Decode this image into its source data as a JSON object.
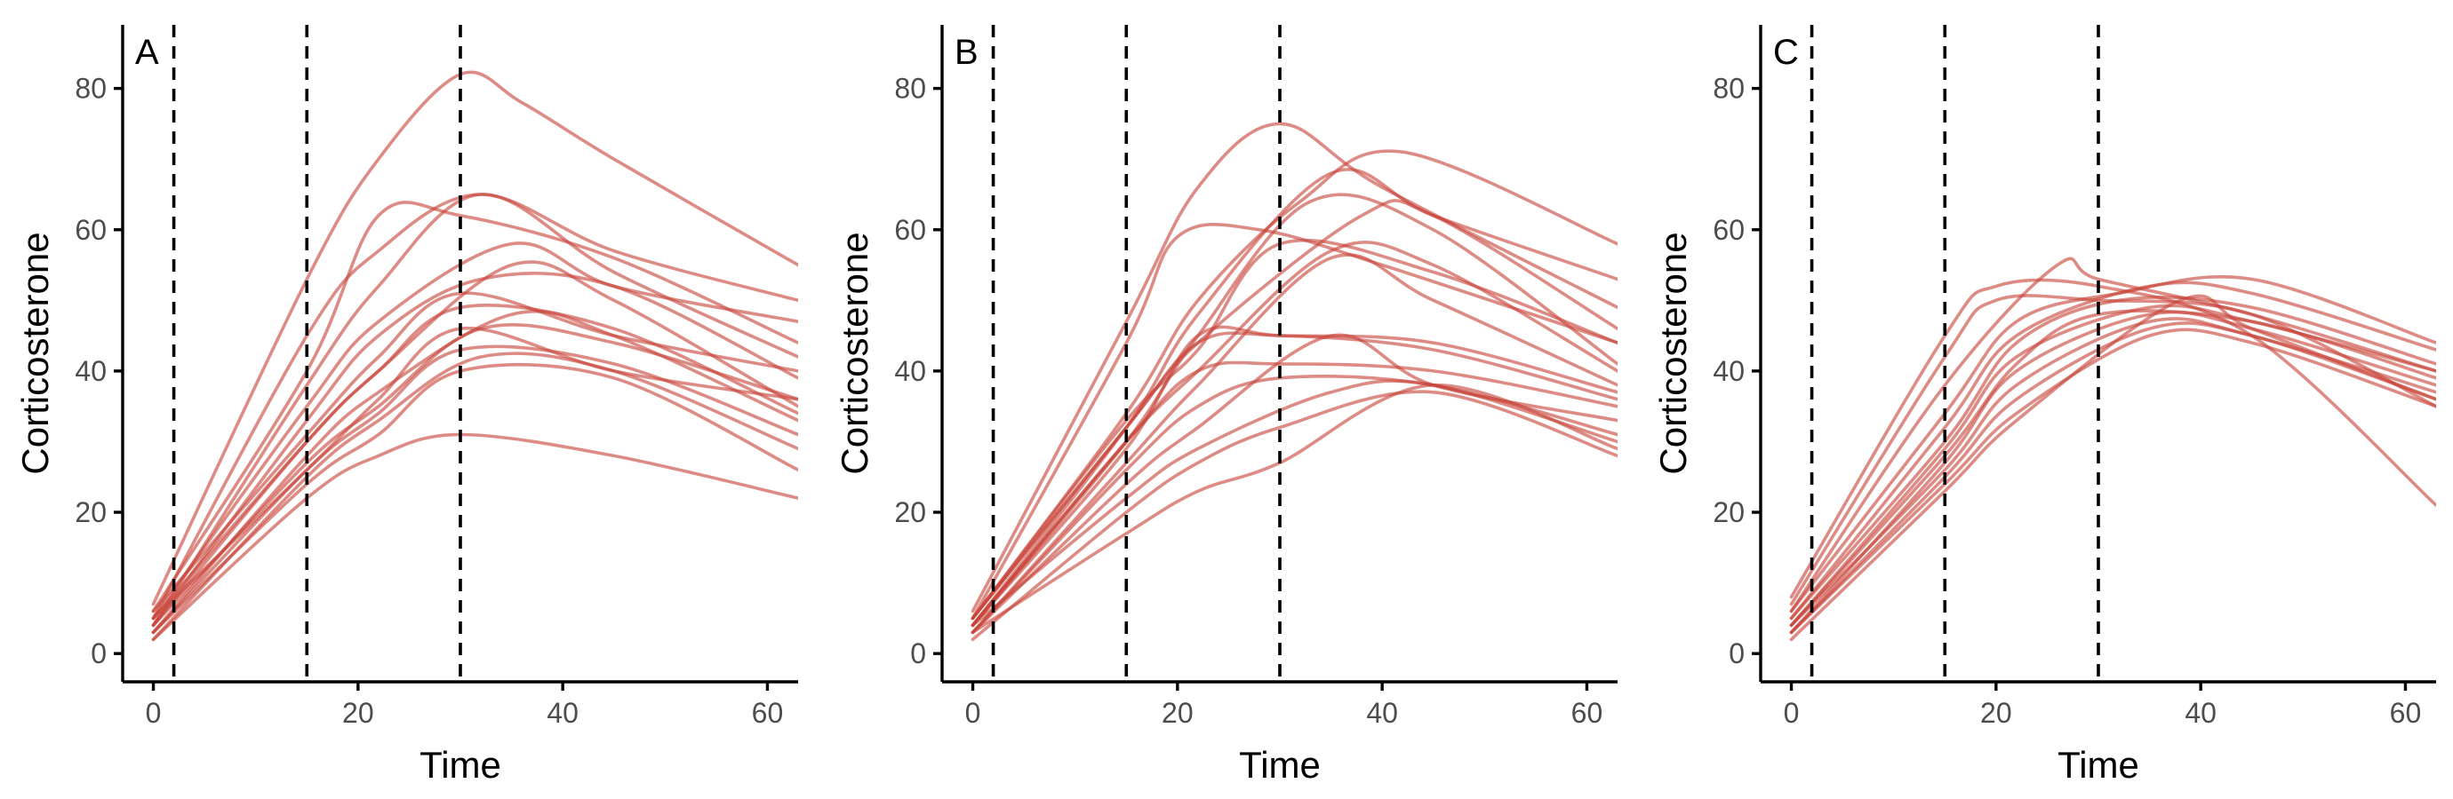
{
  "chart_data": [
    {
      "type": "line",
      "panel_label": "A",
      "xlabel": "Time",
      "ylabel": "Corticosterone",
      "xlim": [
        -3,
        63
      ],
      "ylim": [
        -4,
        89
      ],
      "xticks": [
        0,
        20,
        40,
        60
      ],
      "yticks": [
        0,
        20,
        40,
        60,
        80
      ],
      "vlines": [
        2,
        15,
        30
      ],
      "line_color": "#c8443a",
      "grid": false,
      "series": [
        {
          "x": [
            0,
            15,
            22,
            30,
            36,
            45,
            63
          ],
          "y": [
            7,
            53,
            70,
            82,
            78,
            70,
            55
          ]
        },
        {
          "x": [
            0,
            15,
            22,
            30,
            45,
            63
          ],
          "y": [
            6,
            40,
            62,
            62,
            56,
            44
          ]
        },
        {
          "x": [
            0,
            15,
            22,
            32,
            45,
            63
          ],
          "y": [
            5,
            45,
            57,
            65,
            57,
            50
          ]
        },
        {
          "x": [
            0,
            15,
            22,
            32,
            45,
            63
          ],
          "y": [
            4,
            38,
            52,
            65,
            54,
            42
          ]
        },
        {
          "x": [
            0,
            15,
            22,
            35,
            45,
            63
          ],
          "y": [
            5,
            35,
            47,
            58,
            52,
            47
          ]
        },
        {
          "x": [
            0,
            15,
            22,
            32,
            45,
            63
          ],
          "y": [
            4,
            33,
            45,
            53,
            52,
            39
          ]
        },
        {
          "x": [
            0,
            15,
            22,
            30,
            45,
            63
          ],
          "y": [
            6,
            31,
            42,
            51,
            45,
            40
          ]
        },
        {
          "x": [
            0,
            15,
            22,
            35,
            45,
            63
          ],
          "y": [
            5,
            30,
            40,
            55,
            50,
            35
          ]
        },
        {
          "x": [
            0,
            15,
            22,
            30,
            45,
            63
          ],
          "y": [
            4,
            30,
            40,
            49,
            46,
            34
          ]
        },
        {
          "x": [
            0,
            15,
            22,
            35,
            45,
            63
          ],
          "y": [
            3,
            28,
            37,
            48,
            45,
            33
          ]
        },
        {
          "x": [
            0,
            15,
            22,
            32,
            45,
            63
          ],
          "y": [
            4,
            27,
            35,
            46,
            44,
            36
          ]
        },
        {
          "x": [
            0,
            15,
            22,
            30,
            45,
            63
          ],
          "y": [
            3,
            26,
            34,
            43,
            41,
            31
          ]
        },
        {
          "x": [
            0,
            15,
            22,
            30,
            45,
            63
          ],
          "y": [
            5,
            26,
            36,
            46,
            40,
            36
          ]
        },
        {
          "x": [
            0,
            15,
            22,
            32,
            45,
            63
          ],
          "y": [
            2,
            25,
            33,
            42,
            40,
            29
          ]
        },
        {
          "x": [
            0,
            15,
            22,
            30,
            45,
            63
          ],
          "y": [
            3,
            24,
            31,
            40,
            39,
            26
          ]
        },
        {
          "x": [
            0,
            15,
            22,
            30,
            45,
            63
          ],
          "y": [
            2,
            22,
            28,
            31,
            28,
            22
          ]
        }
      ]
    },
    {
      "type": "line",
      "panel_label": "B",
      "xlabel": "Time",
      "ylabel": "Corticosterone",
      "xlim": [
        -3,
        63
      ],
      "ylim": [
        -4,
        89
      ],
      "xticks": [
        0,
        20,
        40,
        60
      ],
      "yticks": [
        0,
        20,
        40,
        60,
        80
      ],
      "vlines": [
        2,
        15,
        30
      ],
      "line_color": "#c8443a",
      "grid": false,
      "series": [
        {
          "x": [
            0,
            15,
            22,
            30,
            40,
            63
          ],
          "y": [
            6,
            47,
            66,
            75,
            66,
            49
          ]
        },
        {
          "x": [
            0,
            15,
            20,
            28,
            40,
            63
          ],
          "y": [
            5,
            44,
            59,
            60,
            55,
            44
          ]
        },
        {
          "x": [
            0,
            15,
            22,
            32,
            42,
            63
          ],
          "y": [
            5,
            34,
            50,
            64,
            71,
            58
          ]
        },
        {
          "x": [
            0,
            15,
            22,
            35,
            45,
            63
          ],
          "y": [
            4,
            32,
            48,
            68,
            62,
            53
          ]
        },
        {
          "x": [
            0,
            15,
            22,
            33,
            45,
            63
          ],
          "y": [
            4,
            30,
            45,
            64,
            60,
            41
          ]
        },
        {
          "x": [
            0,
            15,
            22,
            38,
            45,
            63
          ],
          "y": [
            5,
            32,
            44,
            62,
            62,
            46
          ]
        },
        {
          "x": [
            0,
            15,
            22,
            30,
            45,
            63
          ],
          "y": [
            5,
            33,
            43,
            58,
            54,
            44
          ]
        },
        {
          "x": [
            0,
            15,
            22,
            35,
            45,
            63
          ],
          "y": [
            4,
            30,
            40,
            57,
            55,
            40
          ]
        },
        {
          "x": [
            0,
            15,
            22,
            35,
            45,
            63
          ],
          "y": [
            3,
            27,
            38,
            56,
            50,
            38
          ]
        },
        {
          "x": [
            0,
            15,
            22,
            30,
            45,
            63
          ],
          "y": [
            4,
            29,
            45,
            45,
            44,
            37
          ]
        },
        {
          "x": [
            0,
            15,
            22,
            30,
            45,
            63
          ],
          "y": [
            5,
            32,
            44,
            45,
            43,
            36
          ]
        },
        {
          "x": [
            0,
            15,
            22,
            30,
            45,
            63
          ],
          "y": [
            4,
            30,
            40,
            41,
            40,
            35
          ]
        },
        {
          "x": [
            0,
            15,
            22,
            30,
            45,
            63
          ],
          "y": [
            3,
            26,
            35,
            39,
            38,
            31
          ]
        },
        {
          "x": [
            0,
            15,
            22,
            35,
            45,
            63
          ],
          "y": [
            3,
            24,
            32,
            45,
            38,
            33
          ]
        },
        {
          "x": [
            0,
            15,
            22,
            35,
            45,
            63
          ],
          "y": [
            4,
            22,
            29,
            37,
            38,
            30
          ]
        },
        {
          "x": [
            0,
            15,
            22,
            30,
            45,
            63
          ],
          "y": [
            2,
            20,
            27,
            32,
            37,
            28
          ]
        },
        {
          "x": [
            0,
            15,
            22,
            30,
            45,
            63
          ],
          "y": [
            3,
            17,
            23,
            27,
            38,
            29
          ]
        }
      ]
    },
    {
      "type": "line",
      "panel_label": "C",
      "xlabel": "Time",
      "ylabel": "Corticosterone",
      "xlim": [
        -3,
        63
      ],
      "ylim": [
        -4,
        89
      ],
      "xticks": [
        0,
        20,
        40,
        60
      ],
      "yticks": [
        0,
        20,
        40,
        60,
        80
      ],
      "vlines": [
        2,
        15,
        30
      ],
      "line_color": "#c8443a",
      "grid": false,
      "series": [
        {
          "x": [
            0,
            15,
            20,
            30,
            45,
            63
          ],
          "y": [
            8,
            45,
            52,
            52,
            45,
            21
          ]
        },
        {
          "x": [
            0,
            15,
            20,
            30,
            45,
            63
          ],
          "y": [
            7,
            42,
            50,
            50,
            48,
            35
          ]
        },
        {
          "x": [
            0,
            15,
            26,
            30,
            45,
            63
          ],
          "y": [
            6,
            38,
            55,
            53,
            48,
            40
          ]
        },
        {
          "x": [
            0,
            15,
            22,
            32,
            45,
            63
          ],
          "y": [
            6,
            34,
            47,
            51,
            53,
            44
          ]
        },
        {
          "x": [
            0,
            15,
            22,
            35,
            45,
            63
          ],
          "y": [
            5,
            32,
            45,
            52,
            51,
            43
          ]
        },
        {
          "x": [
            0,
            15,
            22,
            32,
            45,
            63
          ],
          "y": [
            5,
            30,
            44,
            50,
            49,
            41
          ]
        },
        {
          "x": [
            0,
            15,
            22,
            35,
            45,
            63
          ],
          "y": [
            4,
            29,
            42,
            49,
            47,
            40
          ]
        },
        {
          "x": [
            0,
            15,
            22,
            30,
            45,
            63
          ],
          "y": [
            4,
            28,
            41,
            48,
            47,
            39
          ]
        },
        {
          "x": [
            0,
            15,
            22,
            35,
            45,
            63
          ],
          "y": [
            3,
            27,
            40,
            48,
            46,
            38
          ]
        },
        {
          "x": [
            0,
            15,
            22,
            35,
            45,
            63
          ],
          "y": [
            4,
            26,
            38,
            47,
            45,
            37
          ]
        },
        {
          "x": [
            0,
            15,
            22,
            35,
            45,
            63
          ],
          "y": [
            3,
            25,
            36,
            46,
            45,
            36
          ]
        },
        {
          "x": [
            0,
            15,
            22,
            35,
            45,
            63
          ],
          "y": [
            3,
            24,
            34,
            45,
            44,
            35
          ]
        },
        {
          "x": [
            0,
            15,
            22,
            38,
            45,
            63
          ],
          "y": [
            2,
            23,
            33,
            50,
            46,
            36
          ]
        }
      ]
    }
  ]
}
